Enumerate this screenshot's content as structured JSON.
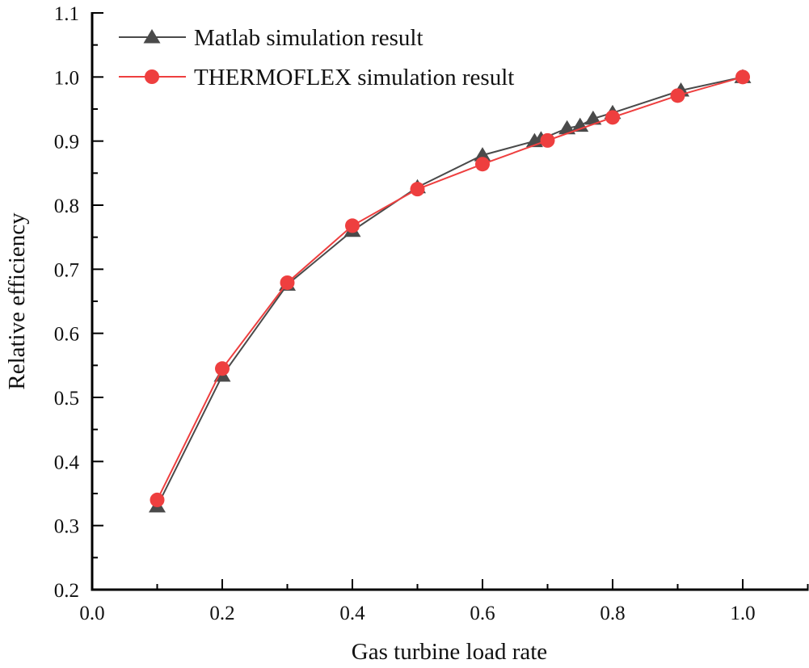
{
  "chart_data": {
    "type": "line",
    "title": "",
    "xlabel": "Gas turbine load rate",
    "ylabel": "Relative efficiency",
    "xlim": [
      0.0,
      1.1
    ],
    "ylim": [
      0.2,
      1.1
    ],
    "grid": false,
    "legend_position": "top-left",
    "x_ticks": [
      "0.0",
      "0.2",
      "0.4",
      "0.6",
      "0.8",
      "1.0"
    ],
    "x_tick_values": [
      0.0,
      0.2,
      0.4,
      0.6,
      0.8,
      1.0
    ],
    "x_minor_tick_values": [
      0.1,
      0.3,
      0.5,
      0.7,
      0.9,
      1.1
    ],
    "y_ticks": [
      "0.2",
      "0.3",
      "0.4",
      "0.5",
      "0.6",
      "0.7",
      "0.8",
      "0.9",
      "1.0",
      "1.1"
    ],
    "y_tick_values": [
      0.2,
      0.3,
      0.4,
      0.5,
      0.6,
      0.7,
      0.8,
      0.9,
      1.0,
      1.1
    ],
    "y_minor_tick_values": [
      0.25,
      0.35,
      0.45,
      0.55,
      0.65,
      0.75,
      0.85,
      0.95,
      1.05
    ],
    "series": [
      {
        "name": "Matlab simulation result",
        "marker": "triangle",
        "color": "#4a4a4a",
        "x": [
          0.1,
          0.2,
          0.3,
          0.4,
          0.5,
          0.6,
          0.68,
          0.69,
          0.73,
          0.75,
          0.77,
          0.8,
          0.905,
          1.0
        ],
        "y": [
          0.33,
          0.534,
          0.676,
          0.76,
          0.828,
          0.878,
          0.9,
          0.903,
          0.92,
          0.924,
          0.935,
          0.944,
          0.979,
          1.0
        ]
      },
      {
        "name": "THERMOFLEX simulation result",
        "marker": "circle",
        "color": "#ee3f3f",
        "x": [
          0.1,
          0.2,
          0.3,
          0.4,
          0.5,
          0.6,
          0.7,
          0.8,
          0.9,
          1.0
        ],
        "y": [
          0.34,
          0.545,
          0.679,
          0.768,
          0.825,
          0.864,
          0.901,
          0.937,
          0.971,
          1.0
        ]
      }
    ]
  }
}
